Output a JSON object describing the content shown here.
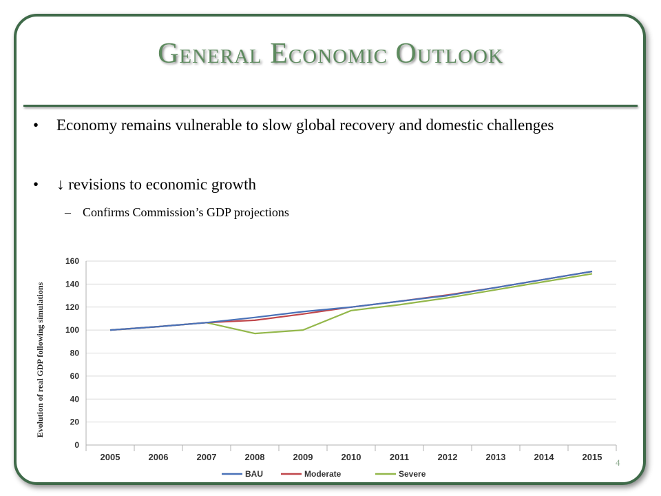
{
  "slide": {
    "title": "General Economic Outlook",
    "bullets": [
      {
        "marker": "•",
        "text": "Economy remains vulnerable to slow global recovery and domestic challenges"
      },
      {
        "marker": "•",
        "text": "↓ revisions to economic growth"
      }
    ],
    "sub_bullets": [
      {
        "marker": "–",
        "text": "Confirms Commission’s GDP projections"
      }
    ],
    "page_number": "4",
    "colors": {
      "frame": "#3f6a49",
      "title": "#5d8a5e"
    }
  },
  "chart_data": {
    "type": "line",
    "title": "",
    "xlabel": "",
    "ylabel": "Evolution of real GDP following simulations",
    "categories": [
      "2005",
      "2006",
      "2007",
      "2008",
      "2009",
      "2010",
      "2011",
      "2012",
      "2013",
      "2014",
      "2015"
    ],
    "ylim": [
      0,
      160
    ],
    "yticks": [
      0,
      20,
      40,
      60,
      80,
      100,
      120,
      140,
      160
    ],
    "grid": true,
    "legend_position": "bottom",
    "series": [
      {
        "name": "BAU",
        "color": "#4a72b8",
        "values": [
          100,
          103,
          106.5,
          111,
          116,
          120,
          125,
          130,
          137,
          144,
          151
        ]
      },
      {
        "name": "Moderate",
        "color": "#c0474b",
        "values": [
          100,
          103,
          106.5,
          108.5,
          114,
          120,
          125,
          130.5,
          137,
          144,
          151
        ]
      },
      {
        "name": "Severe",
        "color": "#93b74a",
        "values": [
          100,
          103,
          106.5,
          97,
          100,
          117,
          122,
          128,
          135,
          142,
          149
        ]
      }
    ]
  }
}
